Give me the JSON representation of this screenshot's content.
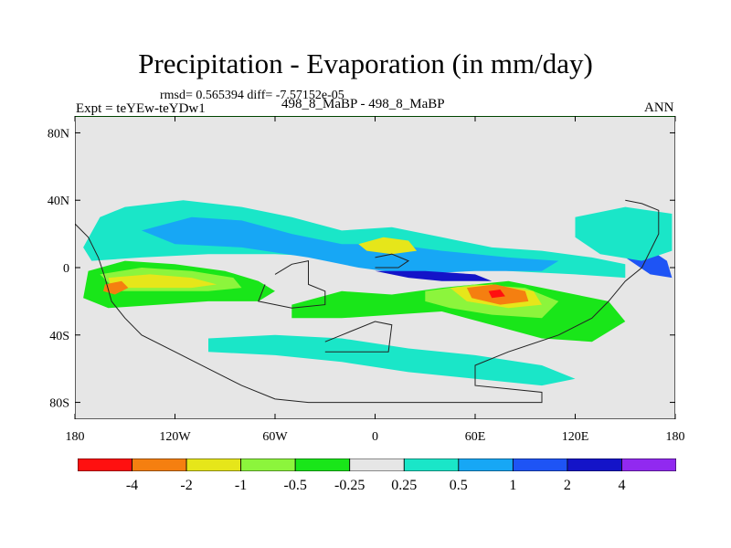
{
  "header": {
    "title": "Precipitation - Evaporation (in mm/day)",
    "stats": "rmsd= 0.565394 diff= -7.57152e-05",
    "experiment": "Expt = teYEw-teYDw1",
    "case": "498_8_MaBP - 498_8_MaBP",
    "season": "ANN"
  },
  "chart_data": {
    "type": "heatmap",
    "title": "Precipitation - Evaporation (in mm/day)",
    "xlabel": "",
    "ylabel": "",
    "xlim": [
      -180,
      180
    ],
    "ylim": [
      -90,
      90
    ],
    "x_ticks": [
      {
        "value": -180,
        "label": "180"
      },
      {
        "value": -120,
        "label": "120W"
      },
      {
        "value": -60,
        "label": "60W"
      },
      {
        "value": 0,
        "label": "0"
      },
      {
        "value": 60,
        "label": "60E"
      },
      {
        "value": 120,
        "label": "120E"
      },
      {
        "value": 180,
        "label": "180"
      }
    ],
    "y_ticks": [
      {
        "value": 80,
        "label": "80N"
      },
      {
        "value": 40,
        "label": "40N"
      },
      {
        "value": 0,
        "label": "0"
      },
      {
        "value": -40,
        "label": "40S"
      },
      {
        "value": -80,
        "label": "80S"
      }
    ],
    "background_color": "#e6e6e6",
    "colorbar": {
      "levels": [
        "-4",
        "-2",
        "-1",
        "-0.5",
        "-0.25",
        "0.25",
        "0.5",
        "1",
        "2",
        "4"
      ],
      "colors": [
        "#ff1010",
        "#f57f10",
        "#e6e61a",
        "#8cf53c",
        "#19e619",
        "#e6e6e6",
        "#1ae6c8",
        "#17a7f5",
        "#1e54f5",
        "#1414c8",
        "#9129f0"
      ]
    },
    "anomaly_regions": [
      {
        "name": "north-hemisphere-band",
        "level_index": 6,
        "points": [
          [
            -175,
            12
          ],
          [
            -165,
            30
          ],
          [
            -150,
            36
          ],
          [
            -115,
            40
          ],
          [
            -80,
            36
          ],
          [
            -50,
            30
          ],
          [
            -20,
            22
          ],
          [
            10,
            24
          ],
          [
            40,
            18
          ],
          [
            70,
            12
          ],
          [
            100,
            10
          ],
          [
            130,
            6
          ],
          [
            150,
            2
          ],
          [
            150,
            -6
          ],
          [
            120,
            -4
          ],
          [
            80,
            -2
          ],
          [
            40,
            2
          ],
          [
            10,
            4
          ],
          [
            -20,
            6
          ],
          [
            -60,
            8
          ],
          [
            -100,
            8
          ],
          [
            -140,
            6
          ],
          [
            -170,
            4
          ]
        ]
      },
      {
        "name": "north-hemisphere-blue",
        "level_index": 7,
        "points": [
          [
            -140,
            22
          ],
          [
            -110,
            30
          ],
          [
            -80,
            28
          ],
          [
            -50,
            20
          ],
          [
            -20,
            14
          ],
          [
            10,
            14
          ],
          [
            40,
            10
          ],
          [
            80,
            6
          ],
          [
            110,
            4
          ],
          [
            100,
            -2
          ],
          [
            60,
            -2
          ],
          [
            20,
            -4
          ],
          [
            -10,
            0
          ],
          [
            -40,
            6
          ],
          [
            -80,
            12
          ],
          [
            -120,
            14
          ]
        ]
      },
      {
        "name": "equatorial-dark-blue",
        "level_index": 9,
        "points": [
          [
            0,
            -2
          ],
          [
            20,
            -6
          ],
          [
            40,
            -8
          ],
          [
            70,
            -8
          ],
          [
            60,
            -4
          ],
          [
            30,
            -2
          ]
        ]
      },
      {
        "name": "north-pacific-yellow",
        "level_index": 2,
        "points": [
          [
            -10,
            14
          ],
          [
            5,
            18
          ],
          [
            20,
            16
          ],
          [
            25,
            10
          ],
          [
            10,
            8
          ],
          [
            -5,
            10
          ]
        ]
      },
      {
        "name": "south-pacific-green",
        "level_index": 4,
        "points": [
          [
            -172,
            -2
          ],
          [
            -150,
            4
          ],
          [
            -120,
            2
          ],
          [
            -90,
            -2
          ],
          [
            -70,
            -8
          ],
          [
            -60,
            -14
          ],
          [
            -70,
            -20
          ],
          [
            -100,
            -20
          ],
          [
            -130,
            -22
          ],
          [
            -160,
            -24
          ],
          [
            -175,
            -18
          ]
        ]
      },
      {
        "name": "south-pacific-light-green",
        "level_index": 3,
        "points": [
          [
            -165,
            -4
          ],
          [
            -140,
            0
          ],
          [
            -110,
            -2
          ],
          [
            -85,
            -6
          ],
          [
            -80,
            -12
          ],
          [
            -100,
            -14
          ],
          [
            -130,
            -14
          ],
          [
            -155,
            -14
          ]
        ]
      },
      {
        "name": "south-pacific-yellow",
        "level_index": 2,
        "points": [
          [
            -160,
            -6
          ],
          [
            -135,
            -4
          ],
          [
            -110,
            -6
          ],
          [
            -95,
            -10
          ],
          [
            -110,
            -12
          ],
          [
            -140,
            -12
          ],
          [
            -158,
            -12
          ]
        ]
      },
      {
        "name": "south-pacific-orange",
        "level_index": 1,
        "points": [
          [
            -162,
            -10
          ],
          [
            -152,
            -8
          ],
          [
            -148,
            -12
          ],
          [
            -156,
            -16
          ],
          [
            -163,
            -14
          ]
        ]
      },
      {
        "name": "indian-ocean-green",
        "level_index": 4,
        "points": [
          [
            -50,
            -22
          ],
          [
            -20,
            -14
          ],
          [
            10,
            -16
          ],
          [
            40,
            -12
          ],
          [
            80,
            -8
          ],
          [
            110,
            -14
          ],
          [
            140,
            -20
          ],
          [
            150,
            -32
          ],
          [
            130,
            -44
          ],
          [
            100,
            -42
          ],
          [
            70,
            -34
          ],
          [
            40,
            -26
          ],
          [
            10,
            -28
          ],
          [
            -20,
            -30
          ],
          [
            -50,
            -30
          ]
        ]
      },
      {
        "name": "indian-ocean-light-green",
        "level_index": 3,
        "points": [
          [
            30,
            -14
          ],
          [
            60,
            -10
          ],
          [
            90,
            -12
          ],
          [
            110,
            -20
          ],
          [
            100,
            -30
          ],
          [
            70,
            -28
          ],
          [
            45,
            -24
          ],
          [
            30,
            -20
          ]
        ]
      },
      {
        "name": "indian-ocean-yellow",
        "level_index": 2,
        "points": [
          [
            45,
            -12
          ],
          [
            70,
            -10
          ],
          [
            95,
            -14
          ],
          [
            100,
            -22
          ],
          [
            80,
            -24
          ],
          [
            55,
            -20
          ]
        ]
      },
      {
        "name": "indian-ocean-orange",
        "level_index": 1,
        "points": [
          [
            55,
            -12
          ],
          [
            72,
            -10
          ],
          [
            90,
            -14
          ],
          [
            92,
            -20
          ],
          [
            75,
            -22
          ],
          [
            58,
            -18
          ]
        ]
      },
      {
        "name": "indian-ocean-red",
        "level_index": 0,
        "points": [
          [
            68,
            -14
          ],
          [
            75,
            -13
          ],
          [
            78,
            -17
          ],
          [
            70,
            -18
          ]
        ]
      },
      {
        "name": "southern-cyan-band",
        "level_index": 6,
        "points": [
          [
            -100,
            -50
          ],
          [
            -60,
            -52
          ],
          [
            -20,
            -56
          ],
          [
            20,
            -62
          ],
          [
            60,
            -66
          ],
          [
            100,
            -70
          ],
          [
            120,
            -66
          ],
          [
            100,
            -58
          ],
          [
            60,
            -52
          ],
          [
            20,
            -48
          ],
          [
            -20,
            -42
          ],
          [
            -60,
            -40
          ],
          [
            -100,
            -42
          ]
        ]
      },
      {
        "name": "east-pacific-blue",
        "level_index": 8,
        "points": [
          [
            140,
            20
          ],
          [
            160,
            14
          ],
          [
            175,
            4
          ],
          [
            178,
            -6
          ],
          [
            165,
            -4
          ],
          [
            150,
            6
          ],
          [
            138,
            12
          ]
        ]
      },
      {
        "name": "east-pacific-cyan",
        "level_index": 6,
        "points": [
          [
            120,
            30
          ],
          [
            150,
            36
          ],
          [
            178,
            32
          ],
          [
            178,
            10
          ],
          [
            160,
            4
          ],
          [
            135,
            8
          ],
          [
            120,
            18
          ]
        ]
      }
    ],
    "contour_lines": [
      {
        "name": "continent-west",
        "points": [
          [
            -180,
            26
          ],
          [
            -172,
            18
          ],
          [
            -166,
            6
          ],
          [
            -162,
            -6
          ],
          [
            -158,
            -20
          ],
          [
            -150,
            -30
          ],
          [
            -140,
            -40
          ],
          [
            -120,
            -50
          ],
          [
            -100,
            -60
          ],
          [
            -80,
            -70
          ],
          [
            -60,
            -78
          ],
          [
            -40,
            -80
          ],
          [
            -20,
            -80
          ],
          [
            0,
            -80
          ],
          [
            40,
            -80
          ],
          [
            80,
            -80
          ],
          [
            100,
            -80
          ],
          [
            100,
            -74
          ],
          [
            80,
            -72
          ],
          [
            60,
            -70
          ],
          [
            60,
            -58
          ],
          [
            80,
            -50
          ],
          [
            110,
            -40
          ],
          [
            130,
            -30
          ],
          [
            140,
            -20
          ],
          [
            150,
            -8
          ],
          [
            160,
            0
          ],
          [
            170,
            20
          ],
          [
            170,
            34
          ],
          [
            160,
            38
          ],
          [
            150,
            40
          ]
        ]
      },
      {
        "name": "central-continent",
        "points": [
          [
            -60,
            -4
          ],
          [
            -50,
            2
          ],
          [
            -40,
            4
          ],
          [
            -40,
            -10
          ],
          [
            -30,
            -14
          ],
          [
            -30,
            -22
          ],
          [
            -50,
            -24
          ],
          [
            -70,
            -20
          ],
          [
            -66,
            -10
          ]
        ]
      },
      {
        "name": "south-continent",
        "points": [
          [
            -30,
            -44
          ],
          [
            -20,
            -40
          ],
          [
            0,
            -32
          ],
          [
            10,
            -34
          ],
          [
            8,
            -50
          ],
          [
            -10,
            -50
          ],
          [
            -30,
            -50
          ]
        ]
      },
      {
        "name": "small-island",
        "points": [
          [
            0,
            6
          ],
          [
            10,
            8
          ],
          [
            20,
            4
          ],
          [
            14,
            0
          ],
          [
            0,
            0
          ]
        ]
      }
    ]
  }
}
